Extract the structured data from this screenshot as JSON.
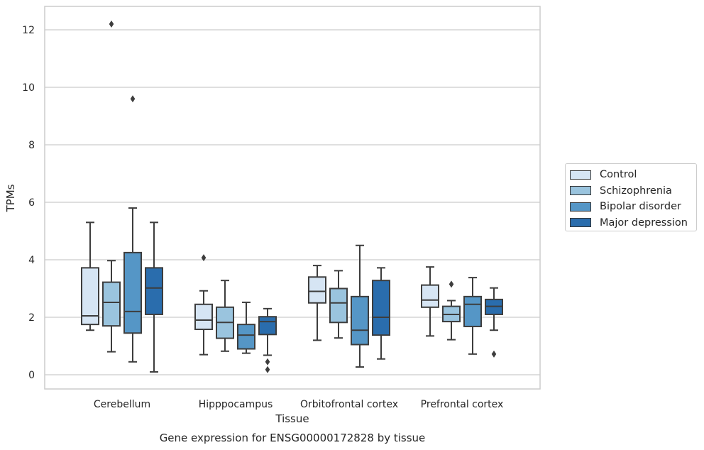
{
  "chart_data": {
    "type": "box",
    "xlabel": "Tissue",
    "ylabel": "TPMs",
    "caption": "Gene expression for ENSG00000172828 by tissue",
    "ylim": [
      -0.45,
      12.8
    ],
    "yticks": [
      0,
      2,
      4,
      6,
      8,
      10,
      12
    ],
    "grid": "horizontal",
    "legend_position": "right",
    "categories": [
      "Cerebellum",
      "Hipppocampus",
      "Orbitofrontal cortex",
      "Prefrontal cortex"
    ],
    "series": [
      {
        "name": "Control",
        "color": "#d6e5f4",
        "boxes": [
          {
            "min": 1.55,
            "q1": 1.75,
            "median": 2.05,
            "q3": 3.72,
            "max": 5.3,
            "outliers": []
          },
          {
            "min": 0.7,
            "q1": 1.58,
            "median": 1.9,
            "q3": 2.45,
            "max": 2.92,
            "outliers": [
              4.07
            ]
          },
          {
            "min": 1.2,
            "q1": 2.5,
            "median": 2.9,
            "q3": 3.4,
            "max": 3.8,
            "outliers": []
          },
          {
            "min": 1.35,
            "q1": 2.35,
            "median": 2.6,
            "q3": 3.12,
            "max": 3.75,
            "outliers": []
          }
        ]
      },
      {
        "name": "Schizophrenia",
        "color": "#9ac4de",
        "boxes": [
          {
            "min": 0.8,
            "q1": 1.7,
            "median": 2.52,
            "q3": 3.22,
            "max": 3.97,
            "outliers": [
              12.2
            ]
          },
          {
            "min": 0.82,
            "q1": 1.27,
            "median": 1.82,
            "q3": 2.35,
            "max": 3.28,
            "outliers": []
          },
          {
            "min": 1.28,
            "q1": 1.82,
            "median": 2.5,
            "q3": 3.0,
            "max": 3.62,
            "outliers": []
          },
          {
            "min": 1.22,
            "q1": 1.85,
            "median": 2.1,
            "q3": 2.38,
            "max": 2.58,
            "outliers": [
              3.15
            ]
          }
        ]
      },
      {
        "name": "Bipolar disorder",
        "color": "#5596c6",
        "boxes": [
          {
            "min": 0.45,
            "q1": 1.45,
            "median": 2.2,
            "q3": 4.25,
            "max": 5.8,
            "outliers": [
              9.6
            ]
          },
          {
            "min": 0.75,
            "q1": 0.9,
            "median": 1.38,
            "q3": 1.75,
            "max": 2.52,
            "outliers": []
          },
          {
            "min": 0.27,
            "q1": 1.05,
            "median": 1.55,
            "q3": 2.72,
            "max": 4.5,
            "outliers": []
          },
          {
            "min": 0.72,
            "q1": 1.68,
            "median": 2.45,
            "q3": 2.72,
            "max": 3.38,
            "outliers": []
          }
        ]
      },
      {
        "name": "Major depression",
        "color": "#2a6dad",
        "boxes": [
          {
            "min": 0.1,
            "q1": 2.1,
            "median": 3.02,
            "q3": 3.72,
            "max": 5.3,
            "outliers": []
          },
          {
            "min": 0.68,
            "q1": 1.4,
            "median": 1.85,
            "q3": 2.02,
            "max": 2.3,
            "outliers": [
              0.45,
              0.18
            ]
          },
          {
            "min": 0.55,
            "q1": 1.38,
            "median": 2.0,
            "q3": 3.28,
            "max": 3.72,
            "outliers": []
          },
          {
            "min": 1.55,
            "q1": 2.1,
            "median": 2.38,
            "q3": 2.62,
            "max": 3.02,
            "outliers": [
              0.72
            ]
          }
        ]
      }
    ]
  }
}
